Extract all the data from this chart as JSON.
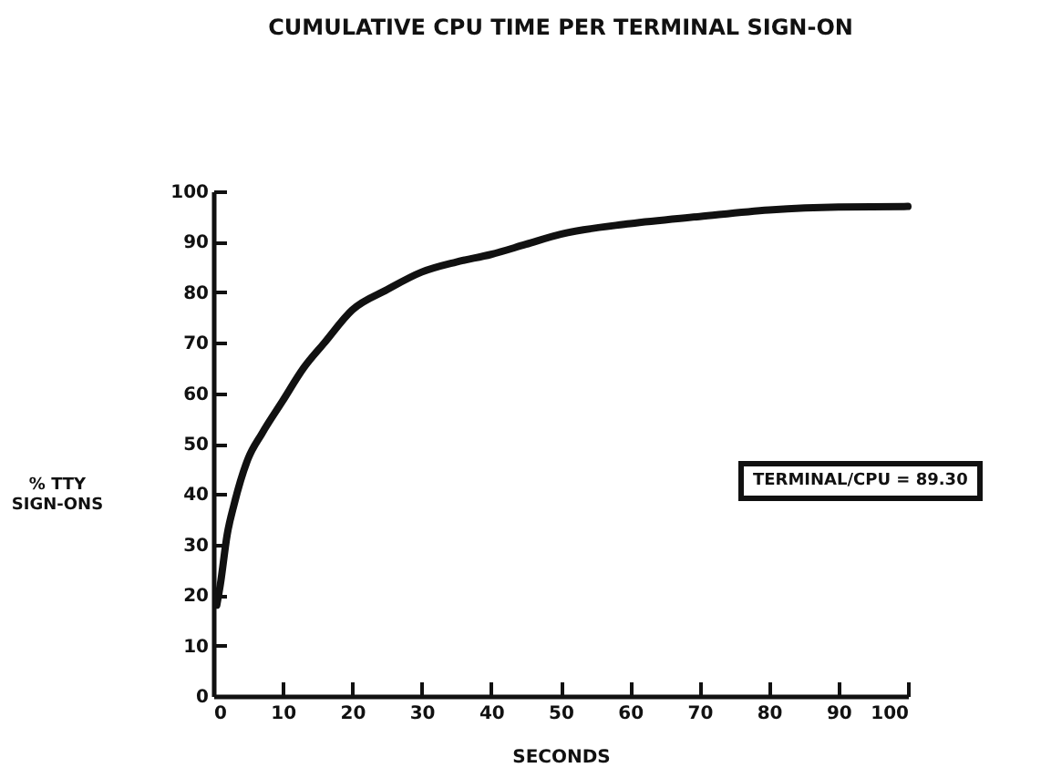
{
  "chart_data": {
    "type": "line",
    "title": "CUMULATIVE CPU TIME PER TERMINAL SIGN-ON",
    "xlabel": "SECONDS",
    "ylabel": "% TTY SIGN-ONS",
    "annotations": [
      "TERMINAL/CPU = 89.30"
    ],
    "x": [
      0.5,
      1,
      2,
      3,
      5,
      7,
      10,
      13,
      16,
      20,
      25,
      30,
      35,
      40,
      45,
      50,
      60,
      70,
      80,
      90,
      100
    ],
    "series": [
      {
        "color": "#111111",
        "values": [
          18,
          22,
          32,
          38,
          47,
          52,
          58.5,
          65,
          70,
          76.5,
          80.5,
          84,
          86,
          87.5,
          89.5,
          91.5,
          93.6,
          95,
          96.3,
          96.9,
          97
        ]
      }
    ],
    "xlim": [
      0,
      100
    ],
    "xticks": [
      0,
      10,
      20,
      30,
      40,
      50,
      60,
      70,
      80,
      90,
      100
    ],
    "ylim": [
      0,
      100
    ],
    "yticks": [
      0,
      10,
      20,
      30,
      40,
      50,
      60,
      70,
      80,
      90,
      100
    ],
    "grid": false,
    "marker": "none",
    "line_style": "solid"
  }
}
